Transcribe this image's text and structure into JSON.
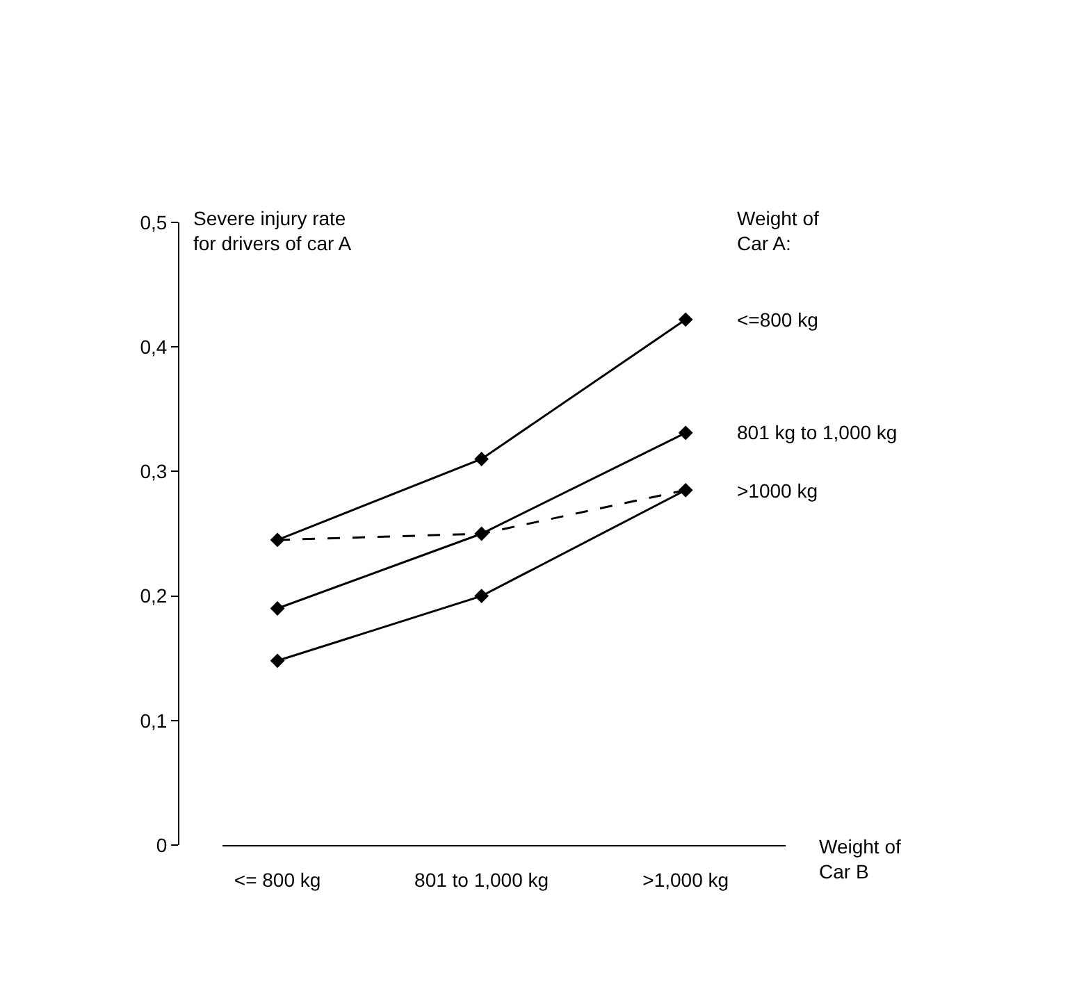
{
  "chart_data": {
    "type": "line",
    "ylabel": "Severe injury rate\nfor drivers of car A",
    "xlabel": "Weight of\nCar B",
    "legend_title": "Weight of\nCar A:",
    "categories": [
      "<= 800 kg",
      "801 to 1,000 kg",
      ">1,000 kg"
    ],
    "series": [
      {
        "name": "<=800 kg",
        "color": "#000000",
        "values": [
          0.245,
          0.31,
          0.422
        ],
        "marker": "diamond",
        "line_style": "solid"
      },
      {
        "name": "801 kg to 1,000 kg",
        "color": "#000000",
        "values": [
          0.19,
          0.25,
          0.331
        ],
        "marker": "diamond",
        "line_style": "solid"
      },
      {
        "name": ">1000 kg",
        "color": "#000000",
        "values": [
          0.148,
          0.2,
          0.285
        ],
        "marker": "diamond",
        "line_style": "solid"
      },
      {
        "color": "#000000",
        "values": [
          0.245,
          0.25,
          0.285
        ],
        "marker": "none",
        "line_style": "dashed"
      }
    ],
    "ylim": [
      0,
      0.5
    ],
    "yticks": [
      {
        "value": 0,
        "label": "0"
      },
      {
        "value": 0.1,
        "label": "0,1"
      },
      {
        "value": 0.2,
        "label": "0,2"
      },
      {
        "value": 0.3,
        "label": "0,3"
      },
      {
        "value": 0.4,
        "label": "0,4"
      },
      {
        "value": 0.5,
        "label": "0,5"
      }
    ]
  }
}
